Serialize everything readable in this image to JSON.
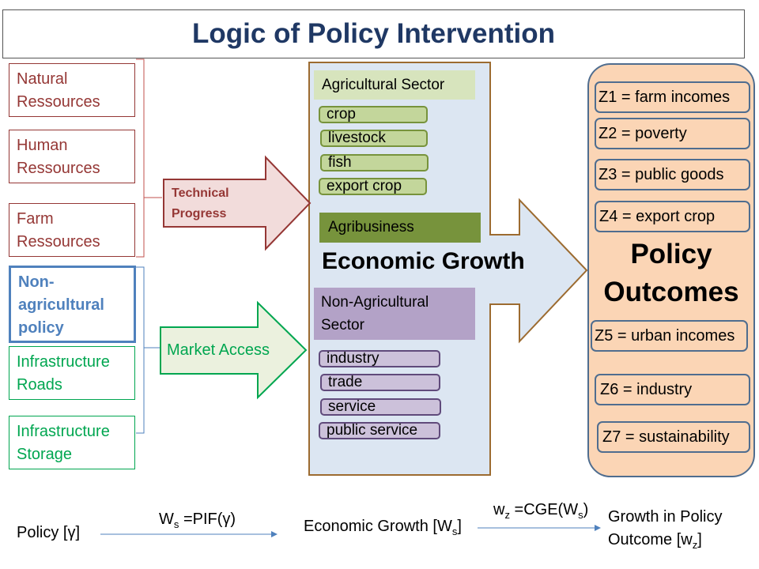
{
  "title": "Logic of Policy Intervention",
  "resources": [
    {
      "line1": "Natural",
      "line2": "Ressources",
      "line3": ""
    },
    {
      "line1": "Human",
      "line2": "Ressources",
      "line3": ""
    },
    {
      "line1": "Farm",
      "line2": "Ressources",
      "line3": ""
    },
    {
      "line1": "Non-",
      "line2": "agricultural",
      "line3": "policy"
    },
    {
      "line1": "Infrastructure",
      "line2": "Roads",
      "line3": ""
    },
    {
      "line1": "Infrastructure",
      "line2": "Storage",
      "line3": ""
    }
  ],
  "arrows": {
    "technical": {
      "line1": "Technical",
      "line2": "Progress"
    },
    "market": "Market Access"
  },
  "center": {
    "agri_sector": "Agricultural Sector",
    "agri_items": [
      "crop",
      "livestock",
      "fish",
      "export crop"
    ],
    "agribusiness": "Agribusiness",
    "growth": "Economic Growth",
    "nonagri_line1": "Non-Agricultural",
    "nonagri_line2": "Sector",
    "nonagri_items": [
      "industry",
      "trade",
      "service",
      "public service"
    ]
  },
  "outcomes": {
    "title_line1": "Policy",
    "title_line2": "Outcomes",
    "items": [
      "Z1 = farm incomes",
      "Z2 = poverty",
      "Z3 = public  goods",
      "Z4 = export crop",
      "Z5 = urban incomes",
      "Z6 = industry",
      "Z7 = sustainability"
    ]
  },
  "bottom": {
    "policy": "Policy [γ]",
    "ws_formula_pre": "W",
    "ws_formula_sub": "s",
    "ws_formula_post": " =PIF(γ)",
    "econ_pre": "Economic Growth [W",
    "econ_sub": "s",
    "econ_post": "]",
    "wz_pre": "w",
    "wz_sub": "z",
    "wz_mid": " =CGE(W",
    "wz_sub2": "s",
    "wz_post": ")",
    "growth_line1": "Growth in Policy",
    "growth_line2_pre": "Outcome [w",
    "growth_line2_sub": "z",
    "growth_line2_post": "]"
  }
}
